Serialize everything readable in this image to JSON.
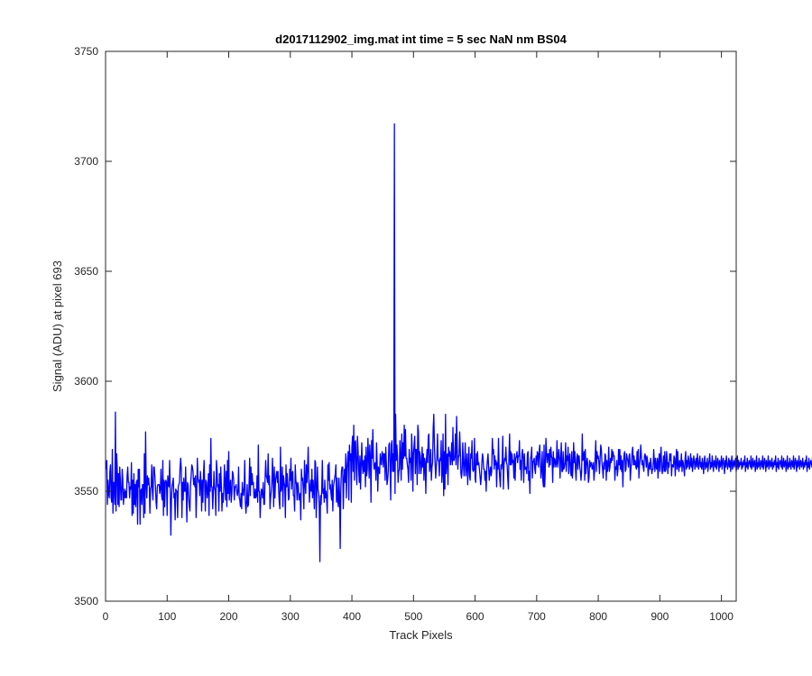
{
  "chart_data": {
    "type": "line",
    "title": "d2017112902_img.mat int time = 5 sec  NaN nm BS04",
    "xlabel": "Track Pixels",
    "ylabel": "Signal (ADU) at pixel 693",
    "xlim": [
      0,
      1024
    ],
    "ylim": [
      3500,
      3750
    ],
    "x_ticks": [
      0,
      100,
      200,
      300,
      400,
      500,
      600,
      700,
      800,
      900,
      1000
    ],
    "y_ticks": [
      3500,
      3550,
      3600,
      3650,
      3700,
      3750
    ],
    "x_tick_labels": [
      "0",
      "100",
      "200",
      "300",
      "400",
      "500",
      "600",
      "700",
      "800",
      "900",
      "1000"
    ],
    "y_tick_labels": [
      "3500",
      "3550",
      "3600",
      "3650",
      "3700",
      "3750"
    ],
    "grid": false,
    "series": [
      {
        "color": "#0000ff",
        "x_start": 1,
        "x_step": 1,
        "values": [
          3560,
          3564,
          3544,
          3555,
          3549,
          3547,
          3559,
          3562,
          3547,
          3545,
          3569,
          3540,
          3554,
          3554,
          3544,
          3586,
          3541,
          3567,
          3560,
          3544,
          3558,
          3543,
          3561,
          3555,
          3546,
          3546,
          3560,
          3555,
          3544,
          3548,
          3551,
          3547,
          3550,
          3547,
          3557,
          3561,
          3554,
          3554,
          3547,
          3552,
          3551,
          3563,
          3539,
          3555,
          3540,
          3558,
          3544,
          3553,
          3543,
          3554,
          3555,
          3535,
          3560,
          3552,
          3560,
          3535,
          3550,
          3551,
          3544,
          3553,
          3553,
          3538,
          3567,
          3540,
          3577,
          3553,
          3547,
          3557,
          3553,
          3556,
          3552,
          3540,
          3551,
          3552,
          3562,
          3550,
          3546,
          3561,
          3561,
          3557,
          3552,
          3545,
          3542,
          3552,
          3553,
          3553,
          3553,
          3549,
          3551,
          3560,
          3548,
          3546,
          3564,
          3539,
          3555,
          3543,
          3554,
          3555,
          3554,
          3539,
          3557,
          3554,
          3552,
          3564,
          3551,
          3530,
          3546,
          3552,
          3554,
          3556,
          3547,
          3549,
          3537,
          3551,
          3550,
          3550,
          3538,
          3552,
          3553,
          3554,
          3561,
          3565,
          3560,
          3538,
          3554,
          3546,
          3556,
          3550,
          3550,
          3561,
          3549,
          3536,
          3554,
          3553,
          3547,
          3543,
          3541,
          3553,
          3557,
          3562,
          3561,
          3559,
          3553,
          3556,
          3552,
          3557,
          3538,
          3549,
          3565,
          3557,
          3554,
          3555,
          3548,
          3559,
          3554,
          3541,
          3555,
          3545,
          3558,
          3564,
          3552,
          3541,
          3555,
          3554,
          3547,
          3550,
          3558,
          3539,
          3562,
          3550,
          3574,
          3552,
          3552,
          3542,
          3549,
          3559,
          3552,
          3550,
          3539,
          3564,
          3560,
          3552,
          3553,
          3541,
          3558,
          3550,
          3561,
          3553,
          3541,
          3549,
          3545,
          3551,
          3562,
          3553,
          3546,
          3559,
          3543,
          3564,
          3549,
          3568,
          3546,
          3553,
          3555,
          3545,
          3549,
          3559,
          3558,
          3555,
          3546,
          3552,
          3552,
          3553,
          3550,
          3548,
          3550,
          3561,
          3547,
          3546,
          3543,
          3549,
          3542,
          3554,
          3549,
          3548,
          3552,
          3564,
          3545,
          3540,
          3545,
          3553,
          3543,
          3544,
          3553,
          3565,
          3548,
          3561,
          3553,
          3558,
          3553,
          3554,
          3547,
          3547,
          3551,
          3547,
          3548,
          3557,
          3545,
          3571,
          3550,
          3550,
          3538,
          3546,
          3551,
          3550,
          3547,
          3554,
          3544,
          3544,
          3555,
          3564,
          3557,
          3556,
          3554,
          3567,
          3553,
          3557,
          3542,
          3547,
          3550,
          3554,
          3565,
          3556,
          3543,
          3561,
          3547,
          3555,
          3557,
          3559,
          3554,
          3559,
          3551,
          3545,
          3542,
          3570,
          3550,
          3552,
          3561,
          3543,
          3557,
          3554,
          3552,
          3538,
          3562,
          3552,
          3558,
          3553,
          3546,
          3547,
          3560,
          3555,
          3565,
          3551,
          3558,
          3559,
          3548,
          3548,
          3541,
          3562,
          3555,
          3553,
          3546,
          3554,
          3552,
          3546,
          3547,
          3549,
          3537,
          3560,
          3555,
          3556,
          3551,
          3542,
          3564,
          3554,
          3549,
          3562,
          3554,
          3560,
          3570,
          3556,
          3545,
          3551,
          3555,
          3550,
          3560,
          3547,
          3555,
          3550,
          3542,
          3564,
          3563,
          3538,
          3550,
          3561,
          3551,
          3549,
          3543,
          3518,
          3548,
          3544,
          3551,
          3564,
          3549,
          3551,
          3545,
          3555,
          3547,
          3550,
          3546,
          3540,
          3562,
          3555,
          3563,
          3551,
          3553,
          3549,
          3546,
          3555,
          3541,
          3552,
          3554,
          3556,
          3558,
          3562,
          3545,
          3556,
          3546,
          3543,
          3556,
          3548,
          3524,
          3551,
          3559,
          3561,
          3561,
          3542,
          3555,
          3560,
          3554,
          3567,
          3547,
          3560,
          3565,
          3568,
          3546,
          3571,
          3564,
          3567,
          3545,
          3570,
          3575,
          3559,
          3580,
          3555,
          3572,
          3573,
          3560,
          3553,
          3575,
          3569,
          3560,
          3554,
          3566,
          3551,
          3562,
          3572,
          3562,
          3558,
          3564,
          3559,
          3566,
          3552,
          3570,
          3557,
          3560,
          3574,
          3566,
          3556,
          3571,
          3565,
          3545,
          3573,
          3565,
          3578,
          3564,
          3560,
          3562,
          3563,
          3555,
          3572,
          3563,
          3550,
          3561,
          3560,
          3558,
          3567,
          3563,
          3562,
          3568,
          3567,
          3561,
          3567,
          3567,
          3555,
          3570,
          3562,
          3553,
          3555,
          3559,
          3571,
          3572,
          3562,
          3546,
          3571,
          3573,
          3559,
          3567,
          3559,
          3717,
          3549,
          3585,
          3564,
          3571,
          3566,
          3554,
          3559,
          3560,
          3573,
          3565,
          3555,
          3576,
          3560,
          3572,
          3565,
          3580,
          3566,
          3578,
          3565,
          3565,
          3562,
          3560,
          3554,
          3569,
          3563,
          3565,
          3555,
          3576,
          3568,
          3550,
          3567,
          3571,
          3575,
          3558,
          3569,
          3569,
          3553,
          3580,
          3577,
          3558,
          3568,
          3566,
          3558,
          3561,
          3570,
          3561,
          3567,
          3555,
          3565,
          3563,
          3549,
          3564,
          3569,
          3563,
          3575,
          3576,
          3559,
          3562,
          3569,
          3555,
          3561,
          3563,
          3579,
          3585,
          3570,
          3563,
          3556,
          3561,
          3566,
          3576,
          3564,
          3564,
          3557,
          3565,
          3564,
          3573,
          3554,
          3559,
          3576,
          3548,
          3568,
          3551,
          3585,
          3558,
          3565,
          3567,
          3553,
          3570,
          3566,
          3568,
          3562,
          3565,
          3572,
          3562,
          3579,
          3564,
          3564,
          3566,
          3576,
          3562,
          3584,
          3570,
          3560,
          3566,
          3566,
          3577,
          3569,
          3558,
          3556,
          3560,
          3572,
          3563,
          3557,
          3564,
          3572,
          3557,
          3561,
          3567,
          3553,
          3561,
          3570,
          3557,
          3555,
          3567,
          3565,
          3573,
          3560,
          3559,
          3560,
          3574,
          3556,
          3554,
          3567,
          3562,
          3568,
          3562,
          3563,
          3560,
          3557,
          3553,
          3556,
          3563,
          3567,
          3565,
          3560,
          3560,
          3555,
          3559,
          3550,
          3560,
          3564,
          3567,
          3561,
          3555,
          3559,
          3561,
          3557,
          3559,
          3574,
          3567,
          3569,
          3560,
          3566,
          3562,
          3564,
          3552,
          3563,
          3560,
          3574,
          3561,
          3556,
          3552,
          3562,
          3560,
          3564,
          3575,
          3551,
          3562,
          3565,
          3564,
          3570,
          3563,
          3562,
          3556,
          3551,
          3566,
          3576,
          3562,
          3568,
          3562,
          3567,
          3563,
          3564,
          3556,
          3567,
          3555,
          3565,
          3566,
          3568,
          3563,
          3566,
          3566,
          3573,
          3560,
          3564,
          3555,
          3567,
          3569,
          3565,
          3554,
          3567,
          3560,
          3560,
          3561,
          3558,
          3567,
          3568,
          3555,
          3559,
          3549,
          3565,
          3566,
          3570,
          3556,
          3563,
          3564,
          3565,
          3560,
          3558,
          3566,
          3562,
          3568,
          3567,
          3561,
          3568,
          3571,
          3563,
          3556,
          3560,
          3568,
          3555,
          3552,
          3571,
          3552,
          3560,
          3574,
          3568,
          3563,
          3567,
          3567,
          3561,
          3569,
          3562,
          3570,
          3566,
          3565,
          3554,
          3568,
          3561,
          3565,
          3564,
          3561,
          3563,
          3573,
          3561,
          3565,
          3569,
          3565,
          3556,
          3565,
          3572,
          3559,
          3559,
          3568,
          3560,
          3561,
          3563,
          3572,
          3559,
          3566,
          3564,
          3570,
          3558,
          3565,
          3567,
          3559,
          3557,
          3568,
          3556,
          3561,
          3572,
          3563,
          3568,
          3560,
          3555,
          3565,
          3567,
          3560,
          3566,
          3566,
          3561,
          3559,
          3555,
          3559,
          3576,
          3564,
          3565,
          3568,
          3555,
          3569,
          3558,
          3562,
          3565,
          3562,
          3554,
          3556,
          3564,
          3561,
          3563,
          3563,
          3560,
          3561,
          3563,
          3555,
          3559,
          3566,
          3573,
          3559,
          3568,
          3565,
          3566,
          3563,
          3558,
          3565,
          3571,
          3569,
          3563,
          3560,
          3556,
          3563,
          3560,
          3567,
          3566,
          3555,
          3564,
          3559,
          3562,
          3570,
          3559,
          3561,
          3565,
          3563,
          3569,
          3564,
          3568,
          3566,
          3566,
          3555,
          3561,
          3560,
          3564,
          3557,
          3560,
          3569,
          3562,
          3569,
          3560,
          3566,
          3559,
          3564,
          3552,
          3563,
          3567,
          3568,
          3559,
          3560,
          3567,
          3565,
          3564,
          3561,
          3566,
          3567,
          3555,
          3560,
          3563,
          3568,
          3570,
          3562,
          3566,
          3562,
          3564,
          3561,
          3560,
          3568,
          3561,
          3569,
          3556,
          3562,
          3565,
          3571,
          3566,
          3562,
          3564,
          3561,
          3559,
          3566,
          3567,
          3565,
          3561,
          3566,
          3564,
          3557,
          3561,
          3563,
          3560,
          3565,
          3562,
          3558,
          3560,
          3560,
          3569,
          3564,
          3559,
          3565,
          3561,
          3560,
          3565,
          3556,
          3563,
          3567,
          3559,
          3566,
          3570,
          3560,
          3558,
          3562,
          3566,
          3559,
          3568,
          3559,
          3560,
          3568,
          3564,
          3558,
          3563,
          3561,
          3567,
          3564,
          3567,
          3557,
          3562,
          3562,
          3561,
          3566,
          3565,
          3557,
          3563,
          3569,
          3560,
          3568,
          3562,
          3559,
          3564,
          3561,
          3562,
          3567,
          3559,
          3564,
          3563,
          3560,
          3557,
          3565,
          3568,
          3560,
          3564,
          3561,
          3566,
          3564,
          3560,
          3562,
          3567,
          3561,
          3565,
          3559,
          3562,
          3566,
          3564,
          3560,
          3563,
          3565,
          3561,
          3567,
          3562,
          3560,
          3564,
          3566,
          3561,
          3563,
          3560,
          3565,
          3562,
          3558,
          3564,
          3566,
          3560,
          3563,
          3561,
          3565,
          3559,
          3562,
          3564,
          3567,
          3560,
          3563,
          3561,
          3566,
          3562,
          3559,
          3564,
          3563,
          3561,
          3566,
          3560,
          3562,
          3565,
          3563,
          3559,
          3564,
          3561,
          3562,
          3566,
          3560,
          3563,
          3565,
          3562,
          3558,
          3564,
          3561,
          3566,
          3563,
          3560,
          3562,
          3565,
          3561,
          3564,
          3559,
          3563,
          3566,
          3560,
          3562,
          3564,
          3561,
          3563,
          3565,
          3559,
          3562,
          3566,
          3560,
          3564,
          3561,
          3563,
          3562,
          3565,
          3560,
          3563,
          3561,
          3564,
          3562,
          3566,
          3559,
          3563,
          3561,
          3565,
          3560,
          3562,
          3564,
          3563,
          3561,
          3566,
          3560,
          3562,
          3565,
          3561,
          3563,
          3564,
          3559,
          3562,
          3566,
          3560,
          3563,
          3561,
          3565,
          3562,
          3560,
          3564,
          3563,
          3561,
          3566,
          3560,
          3562,
          3565,
          3563,
          3559,
          3564,
          3561,
          3562,
          3566,
          3560,
          3563,
          3564,
          3561,
          3562,
          3565,
          3560,
          3563,
          3561,
          3564,
          3562,
          3566,
          3559,
          3563,
          3561,
          3565,
          3560,
          3562,
          3564,
          3563,
          3561,
          3566,
          3560,
          3562,
          3565,
          3561,
          3563,
          3564,
          3559,
          3562,
          3566,
          3560,
          3563,
          3561,
          3565,
          3562,
          3560,
          3564,
          3563,
          3561,
          3566,
          3560,
          3562,
          3565,
          3563,
          3559,
          3564,
          3561,
          3562,
          3566,
          3560,
          3563,
          3564,
          3561,
          3562,
          3565,
          3560,
          3563,
          3561,
          3564,
          3562,
          3566,
          3559,
          3563,
          3561,
          3565,
          3560,
          3562,
          3564,
          3563,
          3561,
          3566,
          3560,
          3562,
          3565,
          3561,
          3563,
          3564,
          3559,
          3562,
          3566,
          3560,
          3563,
          3561,
          3565,
          3562,
          3545,
          3559
        ]
      }
    ]
  }
}
